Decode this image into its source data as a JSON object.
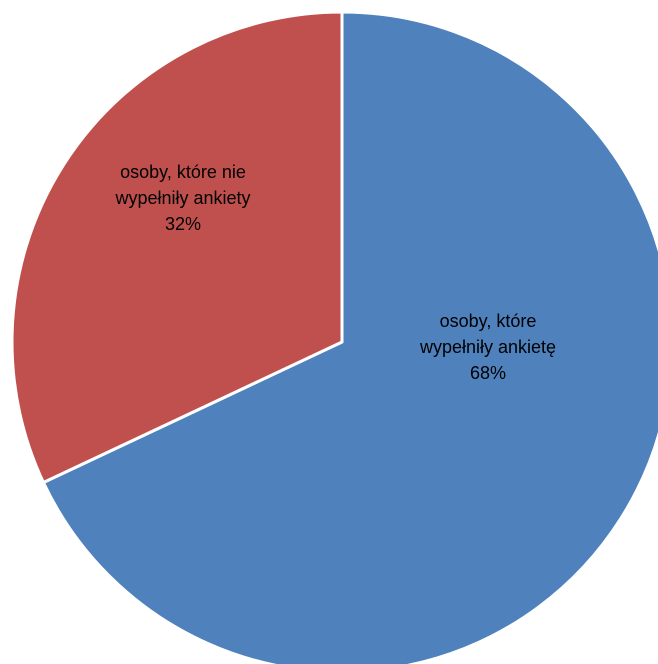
{
  "chart_data": {
    "type": "pie",
    "title": "",
    "slices": [
      {
        "label": "osoby, które wypełniły ankietę",
        "label_lines": [
          "osoby, które",
          "wypełniły ankietę"
        ],
        "value": 68,
        "value_label": "68%",
        "color": "#4F81BD"
      },
      {
        "label": "osoby, które nie wypełniły ankiety",
        "label_lines": [
          "osoby, które nie",
          "wypełniły ankiety"
        ],
        "value": 32,
        "value_label": "32%",
        "color": "#C0504D"
      }
    ],
    "start_angle": "12 o'clock",
    "direction": "clockwise",
    "legend": "none",
    "data_labels": "inside"
  }
}
